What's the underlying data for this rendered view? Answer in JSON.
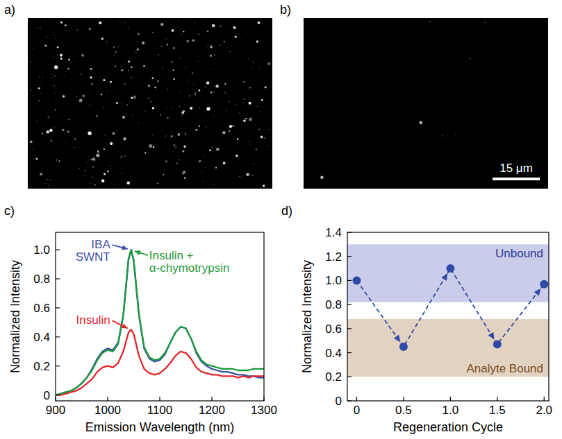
{
  "panels": [
    {
      "label": "a)"
    },
    {
      "label": "b)",
      "scale_bar": "15 μm"
    }
  ],
  "chart_data": [
    {
      "type": "line",
      "panel_label": "c)",
      "x_label": "Emission Wavelength (nm)",
      "y_label": "Normalized Intensity",
      "x": [
        900,
        910,
        920,
        930,
        940,
        950,
        960,
        970,
        980,
        990,
        1000,
        1010,
        1020,
        1030,
        1040,
        1045,
        1050,
        1060,
        1070,
        1080,
        1090,
        1100,
        1110,
        1120,
        1130,
        1140,
        1150,
        1160,
        1170,
        1180,
        1190,
        1200,
        1210,
        1220,
        1230,
        1240,
        1250,
        1260,
        1270,
        1280,
        1290,
        1300
      ],
      "xlim": [
        900,
        1300
      ],
      "xticks": [
        900,
        1000,
        1100,
        1200,
        1300
      ],
      "ylim": [
        -0.04,
        1.12
      ],
      "yticks": [
        0,
        0.2,
        0.4,
        0.6,
        0.8,
        {
          "value": 1,
          "label": "1.0"
        }
      ],
      "grid": false,
      "series": [
        {
          "name": "IBA SWNT",
          "color": "#3b4fa6",
          "line_style": "solid",
          "values": [
            0.0,
            0.01,
            0.02,
            0.03,
            0.05,
            0.08,
            0.12,
            0.18,
            0.25,
            0.3,
            0.32,
            0.31,
            0.36,
            0.55,
            0.93,
            1.0,
            0.92,
            0.55,
            0.32,
            0.25,
            0.23,
            0.24,
            0.28,
            0.36,
            0.43,
            0.47,
            0.46,
            0.39,
            0.29,
            0.23,
            0.2,
            0.18,
            0.17,
            0.16,
            0.16,
            0.15,
            0.14,
            0.14,
            0.13,
            0.13,
            0.12,
            0.12
          ]
        },
        {
          "name": "Insulin",
          "color": "#e5262b",
          "line_style": "solid",
          "values": [
            0.0,
            0.0,
            0.01,
            0.02,
            0.03,
            0.05,
            0.08,
            0.11,
            0.16,
            0.19,
            0.2,
            0.19,
            0.22,
            0.3,
            0.43,
            0.45,
            0.42,
            0.27,
            0.18,
            0.15,
            0.14,
            0.15,
            0.18,
            0.22,
            0.27,
            0.3,
            0.29,
            0.25,
            0.19,
            0.16,
            0.15,
            0.14,
            0.14,
            0.13,
            0.13,
            0.13,
            0.12,
            0.13,
            0.12,
            0.13,
            0.13,
            0.13
          ]
        },
        {
          "name": "Insulin + α-chymotrypsin",
          "color": "#1f9a3b",
          "line_style": "solid",
          "values": [
            0.0,
            0.01,
            0.02,
            0.03,
            0.05,
            0.08,
            0.12,
            0.17,
            0.24,
            0.29,
            0.31,
            0.3,
            0.35,
            0.55,
            0.94,
            1.0,
            0.93,
            0.56,
            0.33,
            0.26,
            0.24,
            0.25,
            0.29,
            0.36,
            0.43,
            0.47,
            0.46,
            0.39,
            0.3,
            0.24,
            0.21,
            0.2,
            0.19,
            0.18,
            0.18,
            0.18,
            0.17,
            0.17,
            0.17,
            0.18,
            0.18,
            0.18
          ]
        }
      ]
    },
    {
      "type": "line",
      "panel_label": "d)",
      "x_label": "Regeneration Cycle",
      "y_label": "Normalized Intensity",
      "x": [
        0,
        0.5,
        1,
        1.5,
        2
      ],
      "xlim": [
        -0.1,
        2.05
      ],
      "xticks": [
        0,
        0.5,
        {
          "value": 1,
          "label": "1.0"
        },
        1.5,
        {
          "value": 2,
          "label": "2.0"
        }
      ],
      "ylim": [
        0,
        1.4
      ],
      "yticks": [
        0,
        0.2,
        0.4,
        0.6,
        0.8,
        {
          "value": 1,
          "label": "1.0"
        },
        1.2,
        1.4
      ],
      "grid": false,
      "bands": [
        {
          "label": "Unbound",
          "range": [
            0.82,
            1.3
          ],
          "color": "#c9cdea"
        },
        {
          "label": "Analyte Bound",
          "range": [
            0.2,
            0.68
          ],
          "color": "#e2d2c1"
        }
      ],
      "series": [
        {
          "color": "#2f4aa6",
          "marker": "circle",
          "line_style": "dashed",
          "values": [
            1.0,
            0.45,
            1.1,
            0.47,
            0.97
          ]
        }
      ]
    }
  ]
}
